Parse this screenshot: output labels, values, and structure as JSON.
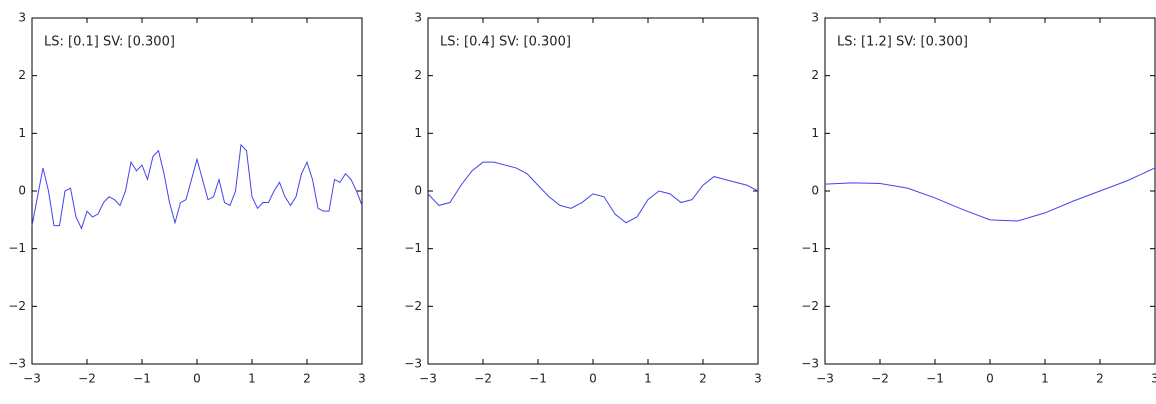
{
  "chart_data": [
    {
      "type": "line",
      "annotation": "LS: [0.1] SV: [0.300]",
      "x": [
        -3,
        -2.9,
        -2.8,
        -2.7,
        -2.6,
        -2.5,
        -2.4,
        -2.3,
        -2.2,
        -2.1,
        -2,
        -1.9,
        -1.8,
        -1.7,
        -1.6,
        -1.5,
        -1.4,
        -1.3,
        -1.2,
        -1.1,
        -1,
        -0.9,
        -0.8,
        -0.7,
        -0.6,
        -0.5,
        -0.4,
        -0.3,
        -0.2,
        -0.1,
        0,
        0.1,
        0.2,
        0.3,
        0.4,
        0.5,
        0.6,
        0.7,
        0.8,
        0.9,
        1,
        1.1,
        1.2,
        1.3,
        1.4,
        1.5,
        1.6,
        1.7,
        1.8,
        1.9,
        2,
        2.1,
        2.2,
        2.3,
        2.4,
        2.5,
        2.6,
        2.7,
        2.8,
        2.9,
        3
      ],
      "values": [
        -0.6,
        -0.1,
        0.4,
        0.0,
        -0.6,
        -0.6,
        0.0,
        0.05,
        -0.45,
        -0.65,
        -0.35,
        -0.45,
        -0.4,
        -0.2,
        -0.1,
        -0.15,
        -0.25,
        0.0,
        0.5,
        0.35,
        0.45,
        0.2,
        0.6,
        0.7,
        0.3,
        -0.2,
        -0.55,
        -0.2,
        -0.15,
        0.2,
        0.55,
        0.2,
        -0.15,
        -0.1,
        0.2,
        -0.2,
        -0.25,
        0.0,
        0.8,
        0.7,
        -0.1,
        -0.3,
        -0.2,
        -0.2,
        0.0,
        0.15,
        -0.1,
        -0.25,
        -0.1,
        0.3,
        0.5,
        0.2,
        -0.3,
        -0.35,
        -0.35,
        0.2,
        0.15,
        0.3,
        0.2,
        0.0,
        -0.25
      ],
      "color": "#4444ee",
      "xlim": [
        -3,
        3
      ],
      "ylim": [
        -3,
        3
      ],
      "xticks": [
        {
          "value": -3,
          "label": "−3"
        },
        {
          "value": -2,
          "label": "−2"
        },
        {
          "value": -1,
          "label": "−1"
        },
        0,
        1,
        2,
        3
      ],
      "yticks": [
        {
          "value": -3,
          "label": "−3"
        },
        {
          "value": -2,
          "label": "−2"
        },
        {
          "value": -1,
          "label": "−1"
        },
        0,
        1,
        2,
        3
      ]
    },
    {
      "type": "line",
      "annotation": "LS: [0.4] SV: [0.300]",
      "x": [
        -3,
        -2.8,
        -2.6,
        -2.4,
        -2.2,
        -2,
        -1.8,
        -1.6,
        -1.4,
        -1.2,
        -1,
        -0.8,
        -0.6,
        -0.4,
        -0.2,
        0,
        0.2,
        0.4,
        0.6,
        0.8,
        1,
        1.2,
        1.4,
        1.6,
        1.8,
        2,
        2.2,
        2.4,
        2.6,
        2.8,
        3
      ],
      "values": [
        -0.05,
        -0.25,
        -0.2,
        0.1,
        0.35,
        0.5,
        0.5,
        0.45,
        0.4,
        0.3,
        0.1,
        -0.1,
        -0.25,
        -0.3,
        -0.2,
        -0.05,
        -0.1,
        -0.4,
        -0.55,
        -0.45,
        -0.15,
        0.0,
        -0.05,
        -0.2,
        -0.15,
        0.1,
        0.25,
        0.2,
        0.15,
        0.1,
        0.0
      ],
      "color": "#4444ee",
      "xlim": [
        -3,
        3
      ],
      "ylim": [
        -3,
        3
      ],
      "xticks": [
        {
          "value": -3,
          "label": "−3"
        },
        {
          "value": -2,
          "label": "−2"
        },
        {
          "value": -1,
          "label": "−1"
        },
        0,
        1,
        2,
        3
      ],
      "yticks": [
        {
          "value": -3,
          "label": "−3"
        },
        {
          "value": -2,
          "label": "−2"
        },
        {
          "value": -1,
          "label": "−1"
        },
        0,
        1,
        2,
        3
      ]
    },
    {
      "type": "line",
      "annotation": "LS: [1.2] SV: [0.300]",
      "x": [
        -3,
        -2.5,
        -2,
        -1.5,
        -1,
        -0.5,
        0,
        0.5,
        1,
        1.5,
        2,
        2.5,
        3
      ],
      "values": [
        0.12,
        0.14,
        0.13,
        0.05,
        -0.12,
        -0.32,
        -0.5,
        -0.52,
        -0.38,
        -0.18,
        0.0,
        0.18,
        0.4
      ],
      "color": "#4444ee",
      "xlim": [
        -3,
        3
      ],
      "ylim": [
        -3,
        3
      ],
      "xticks": [
        {
          "value": -3,
          "label": "−3"
        },
        {
          "value": -2,
          "label": "−2"
        },
        {
          "value": -1,
          "label": "−1"
        },
        0,
        1,
        2,
        3
      ],
      "yticks": [
        {
          "value": -3,
          "label": "−3"
        },
        {
          "value": -2,
          "label": "−2"
        },
        {
          "value": -1,
          "label": "−1"
        },
        0,
        1,
        2,
        3
      ]
    }
  ]
}
